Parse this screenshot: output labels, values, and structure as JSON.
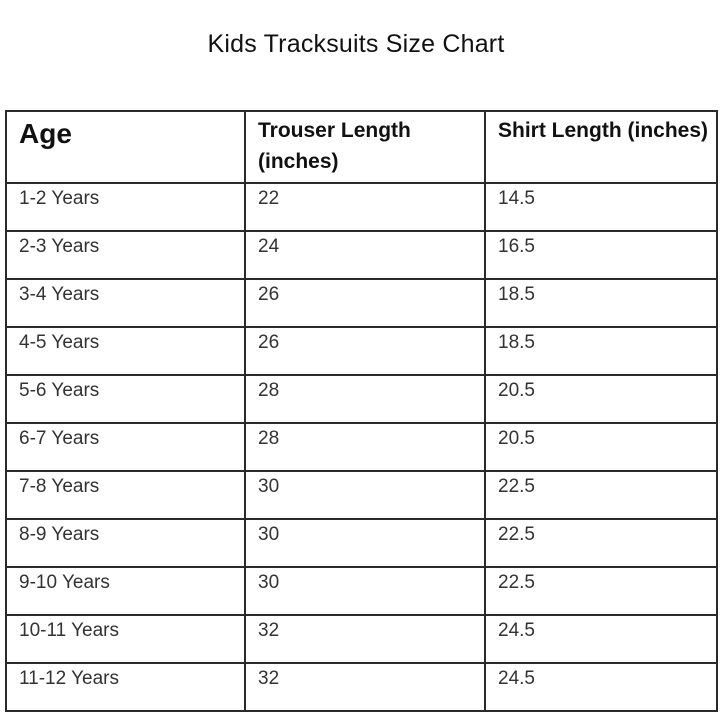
{
  "title": "Kids  Tracksuits Size Chart",
  "table": {
    "headers": [
      "Age",
      "Trouser Length  (inches)",
      "Shirt Length  (inches)"
    ],
    "rows": [
      [
        "1-2 Years",
        "22",
        "14.5"
      ],
      [
        "2-3 Years",
        "24",
        "16.5"
      ],
      [
        "3-4 Years",
        "26",
        "18.5"
      ],
      [
        "4-5 Years",
        "26",
        "18.5"
      ],
      [
        "5-6 Years",
        "28",
        "20.5"
      ],
      [
        "6-7 Years",
        "28",
        "20.5"
      ],
      [
        "7-8 Years",
        "30",
        "22.5"
      ],
      [
        "8-9 Years",
        "30",
        "22.5"
      ],
      [
        "9-10 Years",
        "30",
        "22.5"
      ],
      [
        "10-11 Years",
        "32",
        "24.5"
      ],
      [
        "11-12 Years",
        "32",
        "24.5"
      ]
    ]
  }
}
